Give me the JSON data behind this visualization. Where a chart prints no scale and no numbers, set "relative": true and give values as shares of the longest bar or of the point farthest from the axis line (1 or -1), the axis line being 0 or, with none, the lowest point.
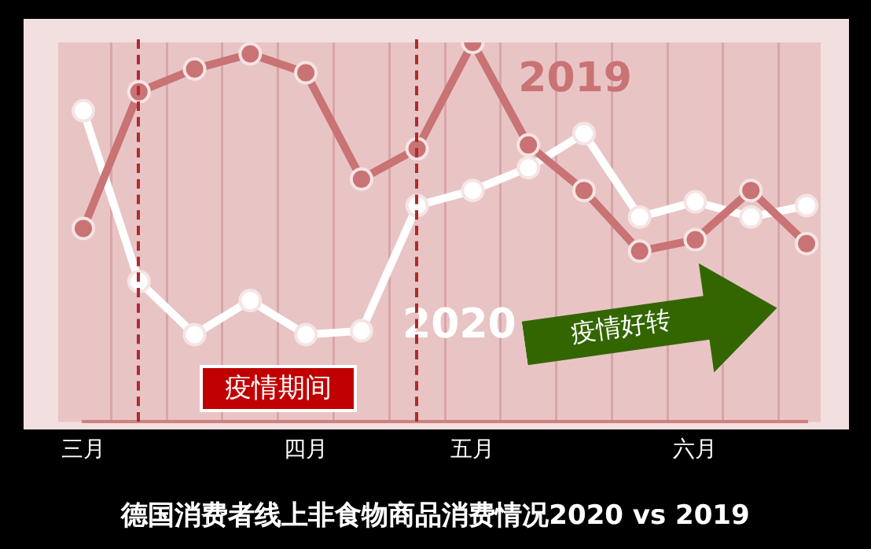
{
  "chart_data": {
    "type": "line",
    "title": "德国消费者线上非食物商品消费情况2020 vs 2019",
    "categories": [
      "三月",
      null,
      null,
      null,
      "四月",
      null,
      null,
      "五月",
      null,
      null,
      null,
      "六月",
      null,
      null
    ],
    "relative": true,
    "series": [
      {
        "name": "2019",
        "color": "#c97374",
        "values": [
          0.51,
          0.87,
          0.93,
          0.97,
          0.92,
          0.64,
          0.72,
          1,
          0.73,
          0.61,
          0.45,
          0.48,
          0.61,
          0.47
        ]
      },
      {
        "name": "2020",
        "color": "#ffffff",
        "values": [
          0.82,
          0.37,
          0.23,
          0.32,
          0.23,
          0.24,
          0.57,
          0.61,
          0.67,
          0.76,
          0.54,
          0.58,
          0.54,
          0.57
        ]
      }
    ],
    "annotations": [
      "疫情期间",
      "疫情好转"
    ],
    "legend": false,
    "grid": "x",
    "marker": "circle",
    "line_style": "solid"
  }
}
